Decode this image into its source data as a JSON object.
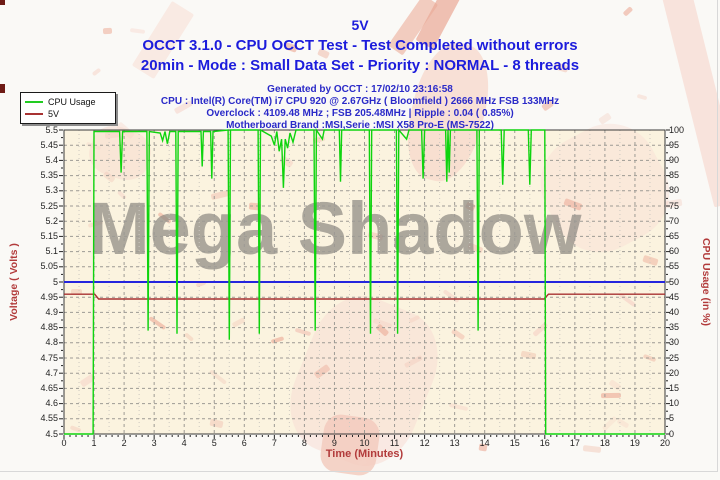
{
  "header": {
    "graph_title": "5V",
    "title_line1": "OCCT 3.1.0 - CPU OCCT Test - Test Completed without errors",
    "title_line2": "20min - Mode : Small Data Set - Priority : NORMAL - 8 threads",
    "info_lines": [
      "Generated by OCCT : 17/02/10 23:16:58",
      "CPU : Intel(R) Core(TM) i7 CPU 920 @ 2.67GHz ( Bloomfield ) 2666 MHz FSB 133MHz",
      "Overclock : 4109.48 MHz ; FSB 205.48MHz | Ripple : 0.04 ( 0.85%)",
      "Motherboard Brand :MSI,Serie :MSI X58 Pro-E (MS-7522)"
    ]
  },
  "legend": {
    "items": [
      {
        "label": "CPU Usage",
        "color": "#22cc22"
      },
      {
        "label": "5V",
        "color": "#a83232"
      }
    ]
  },
  "watermark": {
    "text": "Mega Shadow",
    "text_color": "#8f8a83",
    "shape_color": "#eeb29f"
  },
  "axes": {
    "y_left_title": "Voltage ( Volts )",
    "y_right_title": "CPU Usage (in %)",
    "x_title": "Time (Minutes)",
    "y_left_ticks": [
      "5.5",
      "5.45",
      "5.4",
      "5.35",
      "5.3",
      "5.25",
      "5.2",
      "5.15",
      "5.1",
      "5.05",
      "5",
      "4.95",
      "4.9",
      "4.85",
      "4.8",
      "4.75",
      "4.7",
      "4.65",
      "4.6",
      "4.55",
      "4.5"
    ],
    "y_right_ticks": [
      "100",
      "95",
      "90",
      "85",
      "80",
      "75",
      "70",
      "65",
      "60",
      "55",
      "50",
      "45",
      "40",
      "35",
      "30",
      "25",
      "20",
      "15",
      "10",
      "5",
      "0"
    ],
    "x_ticks": [
      "0",
      "1",
      "2",
      "3",
      "4",
      "5",
      "6",
      "7",
      "8",
      "9",
      "10",
      "11",
      "12",
      "13",
      "14",
      "15",
      "16",
      "17",
      "18",
      "19",
      "20"
    ]
  },
  "chart_data": {
    "type": "line",
    "title": "5V",
    "xlabel": "Time (Minutes)",
    "ylabel_left": "Voltage ( Volts )",
    "ylabel_right": "CPU Usage (in %)",
    "xlim": [
      0,
      20
    ],
    "ylim_left_volts": [
      4.5,
      5.5
    ],
    "ylim_right_pct": [
      0,
      100
    ],
    "grid": true,
    "legend_position": "top-left",
    "colors": {
      "cpu_usage_line": "#0ed40e",
      "five_v_line": "#a83232",
      "nominal_line": "#2525dd",
      "grid_major": "#9d9a94",
      "grid_minor": "#ccc8c0",
      "plot_background": "#fbf3df"
    },
    "nominal_5v_line_volts": 5.0,
    "series": [
      {
        "name": "CPU Usage",
        "axis": "right",
        "unit": "%",
        "points": [
          [
            0,
            0
          ],
          [
            0.97,
            0
          ],
          [
            1.0,
            99.5
          ],
          [
            1.85,
            99.5
          ],
          [
            1.9,
            86
          ],
          [
            1.95,
            99.5
          ],
          [
            2.76,
            99.5
          ],
          [
            2.8,
            34
          ],
          [
            2.84,
            99.5
          ],
          [
            3.2,
            99
          ],
          [
            3.28,
            96.5
          ],
          [
            3.36,
            99.5
          ],
          [
            3.44,
            95.5
          ],
          [
            3.52,
            99.5
          ],
          [
            3.72,
            99.5
          ],
          [
            3.76,
            33
          ],
          [
            3.8,
            99.5
          ],
          [
            4.56,
            99.5
          ],
          [
            4.6,
            88
          ],
          [
            4.64,
            99.5
          ],
          [
            4.88,
            99.5
          ],
          [
            4.92,
            84
          ],
          [
            4.96,
            99.5
          ],
          [
            5.46,
            100
          ],
          [
            5.5,
            31
          ],
          [
            5.54,
            100
          ],
          [
            6.46,
            100
          ],
          [
            6.5,
            33
          ],
          [
            6.54,
            100
          ],
          [
            6.9,
            98
          ],
          [
            7.0,
            95
          ],
          [
            7.08,
            99.5
          ],
          [
            7.16,
            93
          ],
          [
            7.24,
            97
          ],
          [
            7.3,
            81
          ],
          [
            7.36,
            97
          ],
          [
            7.44,
            94
          ],
          [
            7.52,
            99
          ],
          [
            7.62,
            96
          ],
          [
            7.72,
            100
          ],
          [
            8.32,
            100
          ],
          [
            8.36,
            34
          ],
          [
            8.4,
            100
          ],
          [
            8.6,
            97
          ],
          [
            8.66,
            100
          ],
          [
            9.16,
            100
          ],
          [
            9.2,
            83
          ],
          [
            9.24,
            100
          ],
          [
            10.16,
            100
          ],
          [
            10.2,
            33
          ],
          [
            10.24,
            100
          ],
          [
            11.06,
            100
          ],
          [
            11.1,
            33
          ],
          [
            11.14,
            100
          ],
          [
            11.4,
            97
          ],
          [
            11.48,
            100
          ],
          [
            11.9,
            100
          ],
          [
            11.95,
            84
          ],
          [
            12.0,
            100
          ],
          [
            12.7,
            100
          ],
          [
            12.74,
            83
          ],
          [
            12.78,
            100
          ],
          [
            12.82,
            86
          ],
          [
            12.86,
            100
          ],
          [
            13.74,
            100
          ],
          [
            13.78,
            34
          ],
          [
            13.82,
            100
          ],
          [
            14.55,
            100
          ],
          [
            14.6,
            82
          ],
          [
            14.65,
            100
          ],
          [
            15.45,
            100
          ],
          [
            15.5,
            82
          ],
          [
            15.55,
            100
          ],
          [
            16.0,
            100
          ],
          [
            16.03,
            0
          ],
          [
            20,
            0
          ]
        ]
      },
      {
        "name": "5V",
        "axis": "left",
        "unit": "V",
        "points": [
          [
            0,
            4.96
          ],
          [
            1.02,
            4.96
          ],
          [
            1.15,
            4.944
          ],
          [
            15.98,
            4.944
          ],
          [
            16.12,
            4.96
          ],
          [
            20,
            4.96
          ]
        ]
      }
    ]
  }
}
